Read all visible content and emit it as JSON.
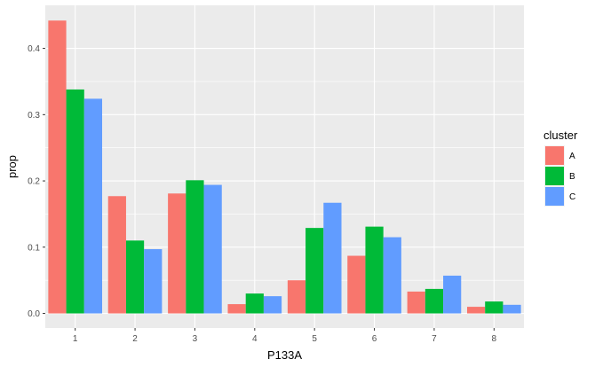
{
  "chart_data": {
    "type": "bar",
    "title": "",
    "xlabel": "P133A",
    "ylabel": "prop",
    "categories": [
      "1",
      "2",
      "3",
      "4",
      "5",
      "6",
      "7",
      "8"
    ],
    "series": [
      {
        "name": "A",
        "color": "#F8766D",
        "values": [
          0.442,
          0.177,
          0.181,
          0.014,
          0.05,
          0.087,
          0.033,
          0.01
        ]
      },
      {
        "name": "B",
        "color": "#00BA38",
        "values": [
          0.338,
          0.11,
          0.201,
          0.03,
          0.129,
          0.131,
          0.037,
          0.018
        ]
      },
      {
        "name": "C",
        "color": "#619CFF",
        "values": [
          0.324,
          0.097,
          0.194,
          0.026,
          0.167,
          0.115,
          0.057,
          0.013
        ]
      }
    ],
    "yticks": [
      "0.0",
      "0.1",
      "0.2",
      "0.3",
      "0.4"
    ],
    "ylim": [
      -0.022,
      0.465
    ],
    "grid": true,
    "legend_title": "cluster",
    "legend_position": "right",
    "panel_background": "#EBEBEB",
    "gridline_color": "#FFFFFF"
  }
}
